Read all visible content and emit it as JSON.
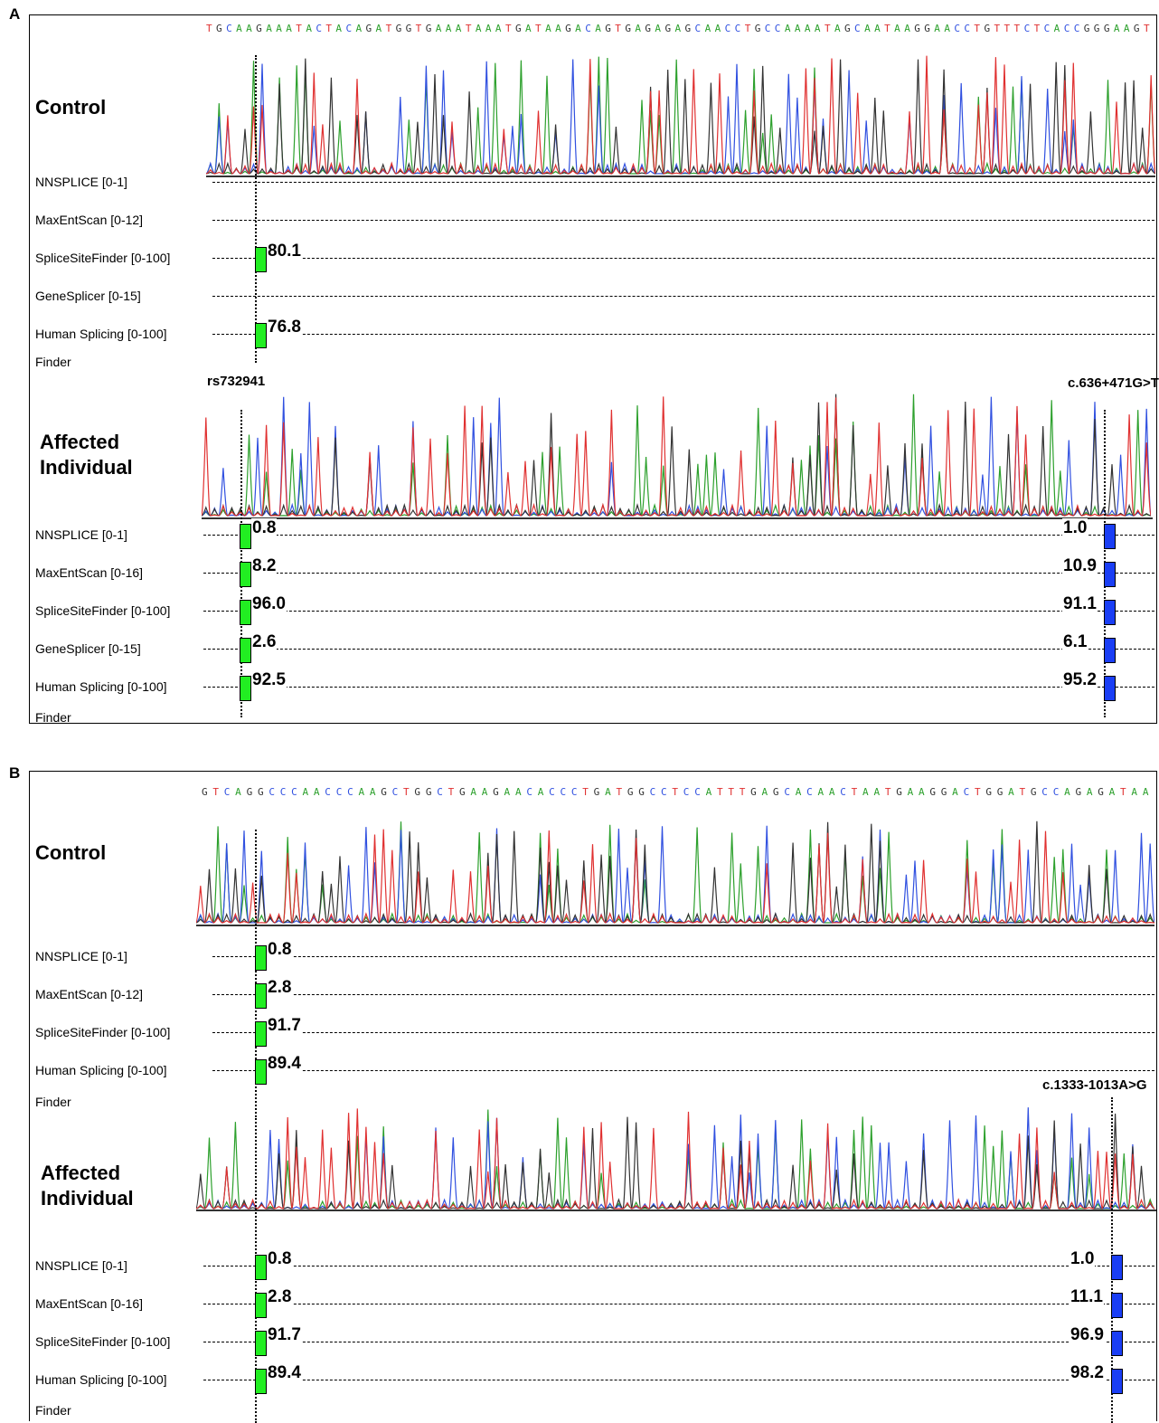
{
  "panel_a": {
    "letter": "A",
    "sequence": "TGCAAGAAATACTACAGATGGTGAAATAAATGATAAGACAGTGAGAGAGCAACCTGCCAAAATAGCAATAAGGAACCTGTTTCTCACCGGGAAGT",
    "control_label": "Control",
    "affected_label": "Affected Individual",
    "finder_label": "Finder",
    "left_variant": "rs732941",
    "right_variant": "c.636+471G>T",
    "control_rows": [
      {
        "label": "NNSPLICE [0-1]",
        "score": ""
      },
      {
        "label": "MaxEntScan [0-12]",
        "score": ""
      },
      {
        "label": "SpliceSiteFinder [0-100]",
        "score": "80.1"
      },
      {
        "label": "GeneSplicer [0-15]",
        "score": ""
      },
      {
        "label": "Human Splicing [0-100]",
        "score": "76.8"
      }
    ],
    "affected_rows": [
      {
        "label": "NNSPLICE [0-1]",
        "left": "0.8",
        "right": "1.0"
      },
      {
        "label": "MaxEntScan [0-16]",
        "left": "8.2",
        "right": "10.9"
      },
      {
        "label": "SpliceSiteFinder [0-100]",
        "left": "96.0",
        "right": "91.1"
      },
      {
        "label": "GeneSplicer [0-15]",
        "left": "2.6",
        "right": "6.1"
      },
      {
        "label": "Human Splicing [0-100]",
        "left": "92.5",
        "right": "95.2"
      }
    ]
  },
  "panel_b": {
    "letter": "B",
    "sequence": "GTCAGGCCCAACCCAAGCTGGCTGAAGAACACCCTGATGGCCTCCATTTGAGCACAACTAATGAAGGACTGGATGCCAGAGATAA",
    "control_label": "Control",
    "affected_label": "Affected Individual",
    "finder_label": "Finder",
    "right_variant": "c.1333-1013A>G",
    "control_rows": [
      {
        "label": "NNSPLICE [0-1]",
        "score": "0.8"
      },
      {
        "label": "MaxEntScan [0-12]",
        "score": "2.8"
      },
      {
        "label": "SpliceSiteFinder [0-100]",
        "score": "91.7"
      },
      {
        "label": "Human Splicing [0-100]",
        "score": "89.4"
      }
    ],
    "affected_rows": [
      {
        "label": "NNSPLICE [0-1]",
        "left": "0.8",
        "right": "1.0"
      },
      {
        "label": "MaxEntScan [0-16]",
        "left": "2.8",
        "right": "11.1"
      },
      {
        "label": "SpliceSiteFinder [0-100]",
        "left": "91.7",
        "right": "96.9"
      },
      {
        "label": "Human Splicing [0-100]",
        "left": "89.4",
        "right": "98.2"
      }
    ]
  },
  "colors": {
    "A": "#2ca02c",
    "C": "#3050e0",
    "G": "#333333",
    "T": "#e03030",
    "reference_box": "#22ee22",
    "variant_box": "#1a3ef5"
  }
}
